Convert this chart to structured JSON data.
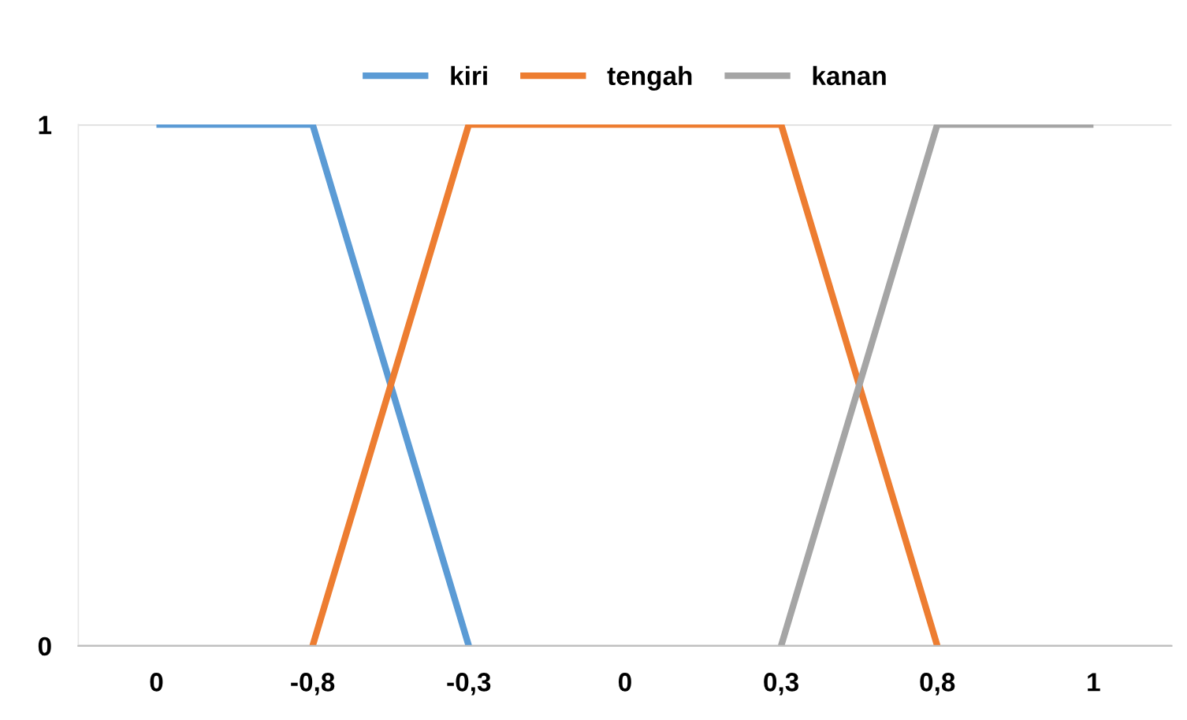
{
  "chart_data": {
    "type": "line",
    "categories": [
      "0",
      "-0,8",
      "-0,3",
      "0",
      "0,3",
      "0,8",
      "1"
    ],
    "series": [
      {
        "name": "kiri",
        "color": "#5b9bd5",
        "values": [
          1,
          1,
          0,
          null,
          null,
          null,
          null
        ]
      },
      {
        "name": "tengah",
        "color": "#ed7d31",
        "values": [
          null,
          0,
          1,
          1,
          1,
          0,
          null
        ]
      },
      {
        "name": "kanan",
        "color": "#a5a5a5",
        "values": [
          null,
          null,
          null,
          null,
          0,
          1,
          1
        ]
      }
    ],
    "ylim": [
      0,
      1
    ],
    "yticks": [
      0,
      1
    ],
    "grid": "y",
    "legend": "top",
    "marker": "none",
    "line_style": "solid"
  }
}
